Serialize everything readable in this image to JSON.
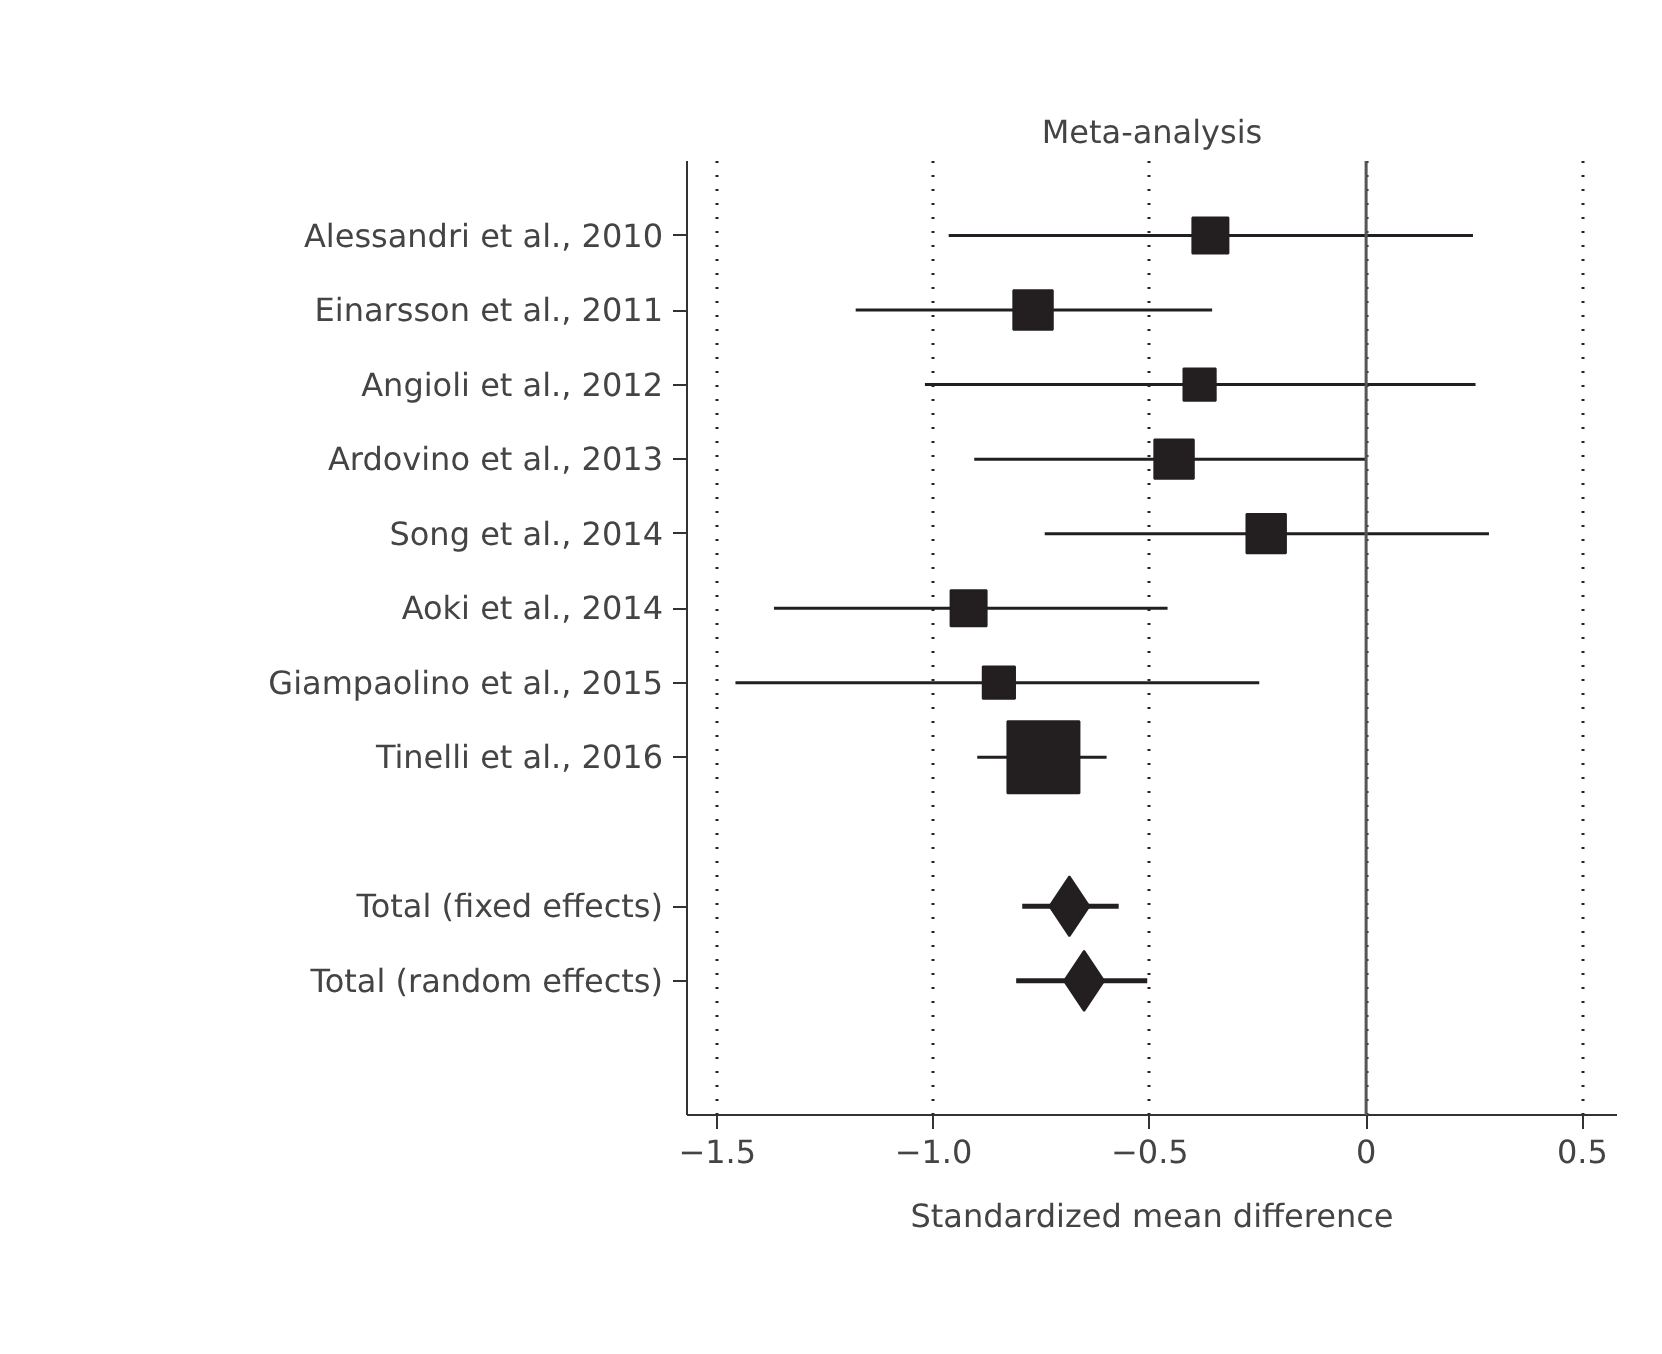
{
  "chart_data": {
    "type": "scatter",
    "title": "Meta-analysis",
    "xlabel": "Standardized mean difference",
    "orientation": "horizontal",
    "categories": [
      "Alessandri et al., 2010",
      "Einarsson et al., 2011",
      "Angioli et al., 2012",
      "Ardovino et al., 2013",
      "Song et al., 2014",
      "Aoki et al., 2014",
      "Giampaolino et al., 2015",
      "Tinelli et al., 2016",
      null,
      "Total (fixed effects)",
      "Total (random effects)"
    ],
    "series": [
      {
        "color": "#231f20",
        "marker": "square",
        "values": [
          -0.36,
          -0.77,
          -0.385,
          -0.444,
          -0.231,
          -0.919,
          -0.849,
          -0.746,
          null,
          null,
          null
        ],
        "errors": [
          [
            -0.965,
            0.247
          ],
          [
            -1.18,
            -0.356
          ],
          [
            -1.02,
            0.253
          ],
          [
            -0.906,
            0.0
          ],
          [
            -0.743,
            0.284
          ],
          [
            -1.369,
            -0.459
          ],
          [
            -1.458,
            -0.247
          ],
          [
            -0.899,
            -0.6
          ],
          null,
          null,
          null
        ],
        "sizes": [
          0.25,
          0.3,
          0.2,
          0.3,
          0.3,
          0.25,
          0.2,
          1,
          null,
          null,
          null
        ]
      },
      {
        "color": "#231f20",
        "marker": "diamond",
        "values": [
          null,
          null,
          null,
          null,
          null,
          null,
          null,
          null,
          null,
          -0.686,
          -0.652
        ],
        "errors": [
          null,
          null,
          null,
          null,
          null,
          null,
          null,
          null,
          null,
          [
            -0.795,
            -0.572
          ],
          [
            -0.809,
            -0.506
          ]
        ]
      }
    ],
    "xlim": [
      -1.57,
      0.58
    ],
    "xticks": [
      {
        "value": -1.5,
        "label": "−1.5"
      },
      {
        "value": -1.0,
        "label": "−1.0"
      },
      {
        "value": -0.5,
        "label": "−0.5"
      },
      0,
      0.5
    ],
    "grid": "x",
    "ref_lines": [
      {
        "axis": "x",
        "value": 0,
        "color": "#555555",
        "line_style": "solid"
      }
    ]
  }
}
